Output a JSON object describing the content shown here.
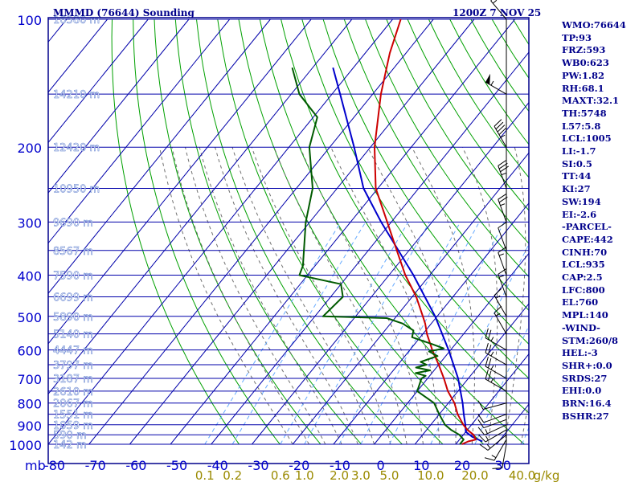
{
  "header": {
    "station_title": "MMMD (76644) Sounding",
    "time_label": "1200Z  7 NOV 25"
  },
  "stats": [
    "WMO:76644",
    "TP:93",
    "FRZ:593",
    "WB0:623",
    "PW:1.82",
    "RH:68.1",
    "MAXT:32.1",
    "TH:5748",
    "L57:5.8",
    "LCL:1005",
    "LI:-1.7",
    "SI:0.5",
    "TT:44",
    "KI:27",
    "SW:194",
    "EI:-2.6",
    "-PARCEL-",
    "CAPE:442",
    "CINH:70",
    "LCL:935",
    "CAP:2.5",
    "LFC:800",
    "EL:760",
    "MPL:140",
    "-WIND-",
    "STM:260/8",
    "HEL:-3",
    "SHR+:0.0",
    "SRDS:27",
    "EHI:0.0",
    "BRN:16.4",
    "BSHR:27"
  ],
  "chart_data": {
    "type": "skew-t",
    "pressure_unit_label": "mb",
    "temperature_ticks": [
      "-80",
      "-70",
      "-60",
      "-50",
      "-40",
      "-30",
      "-20",
      "-10",
      "0",
      "10",
      "20",
      "30"
    ],
    "pressure_ticks": [
      {
        "p": 100,
        "label": "100"
      },
      {
        "p": 200,
        "label": "200"
      },
      {
        "p": 300,
        "label": "300"
      },
      {
        "p": 400,
        "label": "400"
      },
      {
        "p": 500,
        "label": "500"
      },
      {
        "p": 600,
        "label": "600"
      },
      {
        "p": 700,
        "label": "700"
      },
      {
        "p": 800,
        "label": "800"
      },
      {
        "p": 900,
        "label": "900"
      },
      {
        "p": 1000,
        "label": "1000"
      }
    ],
    "height_labels": [
      {
        "p": 100,
        "label": "16580 m"
      },
      {
        "p": 150,
        "label": "14210 m"
      },
      {
        "p": 200,
        "label": "12420 m"
      },
      {
        "p": 250,
        "label": "10950 m"
      },
      {
        "p": 300,
        "label": "9690 m"
      },
      {
        "p": 350,
        "label": "8567 m"
      },
      {
        "p": 400,
        "label": "7590 m"
      },
      {
        "p": 450,
        "label": "6699 m"
      },
      {
        "p": 500,
        "label": "5890 m"
      },
      {
        "p": 550,
        "label": "5140 m"
      },
      {
        "p": 600,
        "label": "4447 m"
      },
      {
        "p": 650,
        "label": "3797 m"
      },
      {
        "p": 700,
        "label": "3187 m"
      },
      {
        "p": 750,
        "label": "2610 m"
      },
      {
        "p": 800,
        "label": "2067 m"
      },
      {
        "p": 850,
        "label": "1551 m"
      },
      {
        "p": 900,
        "label": "1059 m"
      },
      {
        "p": 950,
        "label": "590 m"
      },
      {
        "p": 1000,
        "label": "142 m"
      }
    ],
    "mixing_ratio_labels": [
      "0.1",
      "0.2",
      "0.6",
      "1.0",
      "2.0",
      "3.0",
      "5.0",
      "10.0",
      "20.0",
      "40.0"
    ],
    "mixing_ratio_unit": "g/kg",
    "temperature_profile": [
      {
        "p": 1000,
        "t": 21.5
      },
      {
        "p": 985,
        "t": 22.5
      },
      {
        "p": 975,
        "t": 24
      },
      {
        "p": 950,
        "t": 22.5
      },
      {
        "p": 925,
        "t": 20
      },
      {
        "p": 900,
        "t": 18
      },
      {
        "p": 850,
        "t": 14.5
      },
      {
        "p": 800,
        "t": 11.5
      },
      {
        "p": 750,
        "t": 7.5
      },
      {
        "p": 700,
        "t": 4
      },
      {
        "p": 650,
        "t": 0
      },
      {
        "p": 600,
        "t": -4.5
      },
      {
        "p": 550,
        "t": -9
      },
      {
        "p": 520,
        "t": -11.5
      },
      {
        "p": 500,
        "t": -13.5
      },
      {
        "p": 450,
        "t": -19
      },
      {
        "p": 400,
        "t": -26
      },
      {
        "p": 350,
        "t": -33
      },
      {
        "p": 300,
        "t": -41
      },
      {
        "p": 250,
        "t": -50.5
      },
      {
        "p": 200,
        "t": -59
      },
      {
        "p": 150,
        "t": -68
      },
      {
        "p": 120,
        "t": -74
      },
      {
        "p": 100,
        "t": -78
      }
    ],
    "dewpoint_profile": [
      {
        "p": 1000,
        "t": 21
      },
      {
        "p": 975,
        "t": 21
      },
      {
        "p": 950,
        "t": 19
      },
      {
        "p": 925,
        "t": 16
      },
      {
        "p": 900,
        "t": 13.5
      },
      {
        "p": 850,
        "t": 10
      },
      {
        "p": 800,
        "t": 6.5
      },
      {
        "p": 750,
        "t": 0
      },
      {
        "p": 700,
        "t": -1.5
      },
      {
        "p": 690,
        "t": -1
      },
      {
        "p": 680,
        "t": -4
      },
      {
        "p": 670,
        "t": -1
      },
      {
        "p": 660,
        "t": -5
      },
      {
        "p": 650,
        "t": -3
      },
      {
        "p": 640,
        "t": -5
      },
      {
        "p": 620,
        "t": -2
      },
      {
        "p": 605,
        "t": -5
      },
      {
        "p": 595,
        "t": -2
      },
      {
        "p": 580,
        "t": -6
      },
      {
        "p": 560,
        "t": -12
      },
      {
        "p": 540,
        "t": -13
      },
      {
        "p": 520,
        "t": -17
      },
      {
        "p": 505,
        "t": -22
      },
      {
        "p": 500,
        "t": -38
      },
      {
        "p": 450,
        "t": -37
      },
      {
        "p": 420,
        "t": -40
      },
      {
        "p": 400,
        "t": -52
      },
      {
        "p": 380,
        "t": -53
      },
      {
        "p": 300,
        "t": -61
      },
      {
        "p": 250,
        "t": -66
      },
      {
        "p": 200,
        "t": -75
      },
      {
        "p": 170,
        "t": -79
      },
      {
        "p": 150,
        "t": -88
      },
      {
        "p": 130,
        "t": -95
      }
    ],
    "parcel_profile": [
      {
        "p": 985,
        "t": 26
      },
      {
        "p": 960,
        "t": 22.5
      },
      {
        "p": 935,
        "t": 20
      },
      {
        "p": 900,
        "t": 18.5
      },
      {
        "p": 850,
        "t": 16
      },
      {
        "p": 800,
        "t": 13.5
      },
      {
        "p": 700,
        "t": 7.5
      },
      {
        "p": 600,
        "t": -0.5
      },
      {
        "p": 500,
        "t": -10.5
      },
      {
        "p": 400,
        "t": -24
      },
      {
        "p": 300,
        "t": -42.5
      },
      {
        "p": 250,
        "t": -53.5
      },
      {
        "p": 200,
        "t": -64
      },
      {
        "p": 150,
        "t": -78
      },
      {
        "p": 130,
        "t": -85
      }
    ],
    "wind_barbs": [
      {
        "p": 1000,
        "dir": 190,
        "spd": 10
      },
      {
        "p": 975,
        "dir": 210,
        "spd": 15
      },
      {
        "p": 950,
        "dir": 230,
        "spd": 15
      },
      {
        "p": 925,
        "dir": 240,
        "spd": 15
      },
      {
        "p": 900,
        "dir": 245,
        "spd": 15
      },
      {
        "p": 875,
        "dir": 250,
        "spd": 10
      },
      {
        "p": 850,
        "dir": 250,
        "spd": 10
      },
      {
        "p": 800,
        "dir": 255,
        "spd": 10
      },
      {
        "p": 750,
        "dir": 300,
        "spd": 25
      },
      {
        "p": 700,
        "dir": 300,
        "spd": 25
      },
      {
        "p": 650,
        "dir": 300,
        "spd": 25
      },
      {
        "p": 600,
        "dir": 300,
        "spd": 25
      },
      {
        "p": 550,
        "dir": 330,
        "spd": 15
      },
      {
        "p": 500,
        "dir": 330,
        "spd": 15
      },
      {
        "p": 450,
        "dir": 340,
        "spd": 15
      },
      {
        "p": 400,
        "dir": 340,
        "spd": 15
      },
      {
        "p": 350,
        "dir": 340,
        "spd": 10
      },
      {
        "p": 300,
        "dir": 340,
        "spd": 25
      },
      {
        "p": 250,
        "dir": 340,
        "spd": 35
      },
      {
        "p": 200,
        "dir": 330,
        "spd": 45
      },
      {
        "p": 150,
        "dir": 300,
        "spd": 55
      },
      {
        "p": 100,
        "dir": 320,
        "spd": 15
      }
    ],
    "colors": {
      "frame": "#00008b",
      "isobar": "#0000aa",
      "isotherm": "#0000aa",
      "dry_adiabat": "#00a000",
      "moist_adiabat": "#707070",
      "mixing_ratio": "#66aaff",
      "temperature": "#cc0000",
      "dewpoint": "#005a00",
      "parcel": "#0000cc",
      "axis_text": "#0000cc",
      "height_text": "#ffffff",
      "mixing_text": "#9a8a00",
      "barb": "#000000"
    }
  }
}
